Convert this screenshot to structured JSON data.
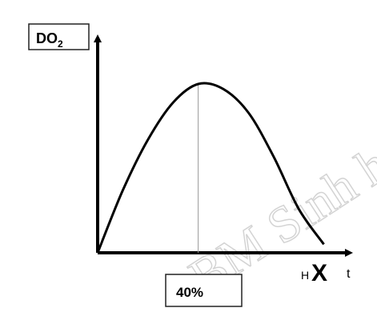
{
  "chart_data": {
    "type": "line",
    "title": "",
    "ylabel_main": "DO",
    "ylabel_sub": "2",
    "xlabel_prefix": "H",
    "xlabel_main": "X",
    "xlabel_suffix": "t",
    "peak_label": "40%",
    "series": [
      {
        "x": [
          0,
          10,
          20,
          30,
          40,
          50,
          60,
          70,
          80,
          90
        ],
        "y": [
          0,
          0.37,
          0.67,
          0.89,
          1.0,
          0.97,
          0.83,
          0.57,
          0.26,
          0.05
        ]
      }
    ],
    "xlim": [
      0,
      100
    ],
    "ylim": [
      0,
      1.27
    ],
    "grid": false,
    "legend": false
  },
  "watermark": "BM Sinh h"
}
